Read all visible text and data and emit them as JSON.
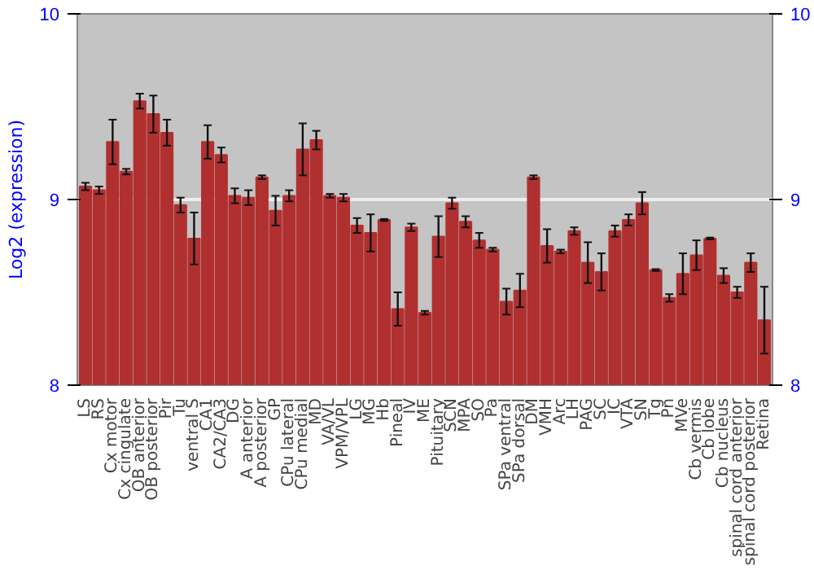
{
  "chart_data": {
    "type": "bar",
    "ylabel": "Log2 (expression)",
    "categories": [
      "LS",
      "RS",
      "Cx motor",
      "Cx cingulate",
      "OB anterior",
      "OB posterior",
      "Pir",
      "Tu",
      "ventral S",
      "CA1",
      "CA2/CA3",
      "DG",
      "A anterior",
      "A posterior",
      "GP",
      "CPu lateral",
      "CPu medial",
      "MD",
      "VA/VL",
      "VPM/VPL",
      "LG",
      "MG",
      "Hb",
      "Pineal",
      "IV",
      "ME",
      "Pituitary",
      "SCN",
      "MPA",
      "SO",
      "Pa",
      "SPa ventral",
      "SPa dorsal",
      "DM",
      "VMH",
      "Arc",
      "LH",
      "PAG",
      "SC",
      "IC",
      "VTA",
      "SN",
      "Tg",
      "Pn",
      "MVe",
      "Cb vermis",
      "Cb lobe",
      "Cb nucleus",
      "spinal cord anterior",
      "spinal cord posterior",
      "Retina"
    ],
    "values": [
      9.07,
      9.05,
      9.31,
      9.15,
      9.53,
      9.46,
      9.36,
      8.97,
      8.79,
      9.31,
      9.24,
      9.02,
      9.01,
      9.12,
      8.94,
      9.02,
      9.27,
      9.32,
      9.02,
      9.01,
      8.86,
      8.82,
      8.89,
      8.41,
      8.85,
      8.39,
      8.8,
      8.98,
      8.88,
      8.78,
      8.73,
      8.45,
      8.51,
      9.12,
      8.75,
      8.72,
      8.83,
      8.66,
      8.61,
      8.83,
      8.89,
      8.98,
      8.62,
      8.47,
      8.6,
      8.7,
      8.79,
      8.59,
      8.5,
      8.66,
      8.35
    ],
    "errors": [
      0.02,
      0.02,
      0.12,
      0.015,
      0.04,
      0.1,
      0.07,
      0.04,
      0.14,
      0.09,
      0.04,
      0.04,
      0.04,
      0.01,
      0.08,
      0.03,
      0.14,
      0.05,
      0.01,
      0.02,
      0.04,
      0.1,
      0.005,
      0.09,
      0.02,
      0.01,
      0.11,
      0.03,
      0.03,
      0.04,
      0.01,
      0.07,
      0.09,
      0.01,
      0.09,
      0.01,
      0.02,
      0.11,
      0.1,
      0.03,
      0.03,
      0.06,
      0.005,
      0.02,
      0.11,
      0.08,
      0.005,
      0.04,
      0.03,
      0.05,
      0.18
    ],
    "color": "#b03030",
    "ylim": [
      8,
      10
    ],
    "yticks": [
      8,
      9,
      10
    ],
    "y2lim": [
      8,
      10
    ],
    "y2ticks": [
      8,
      9,
      10
    ],
    "grid": "y"
  }
}
